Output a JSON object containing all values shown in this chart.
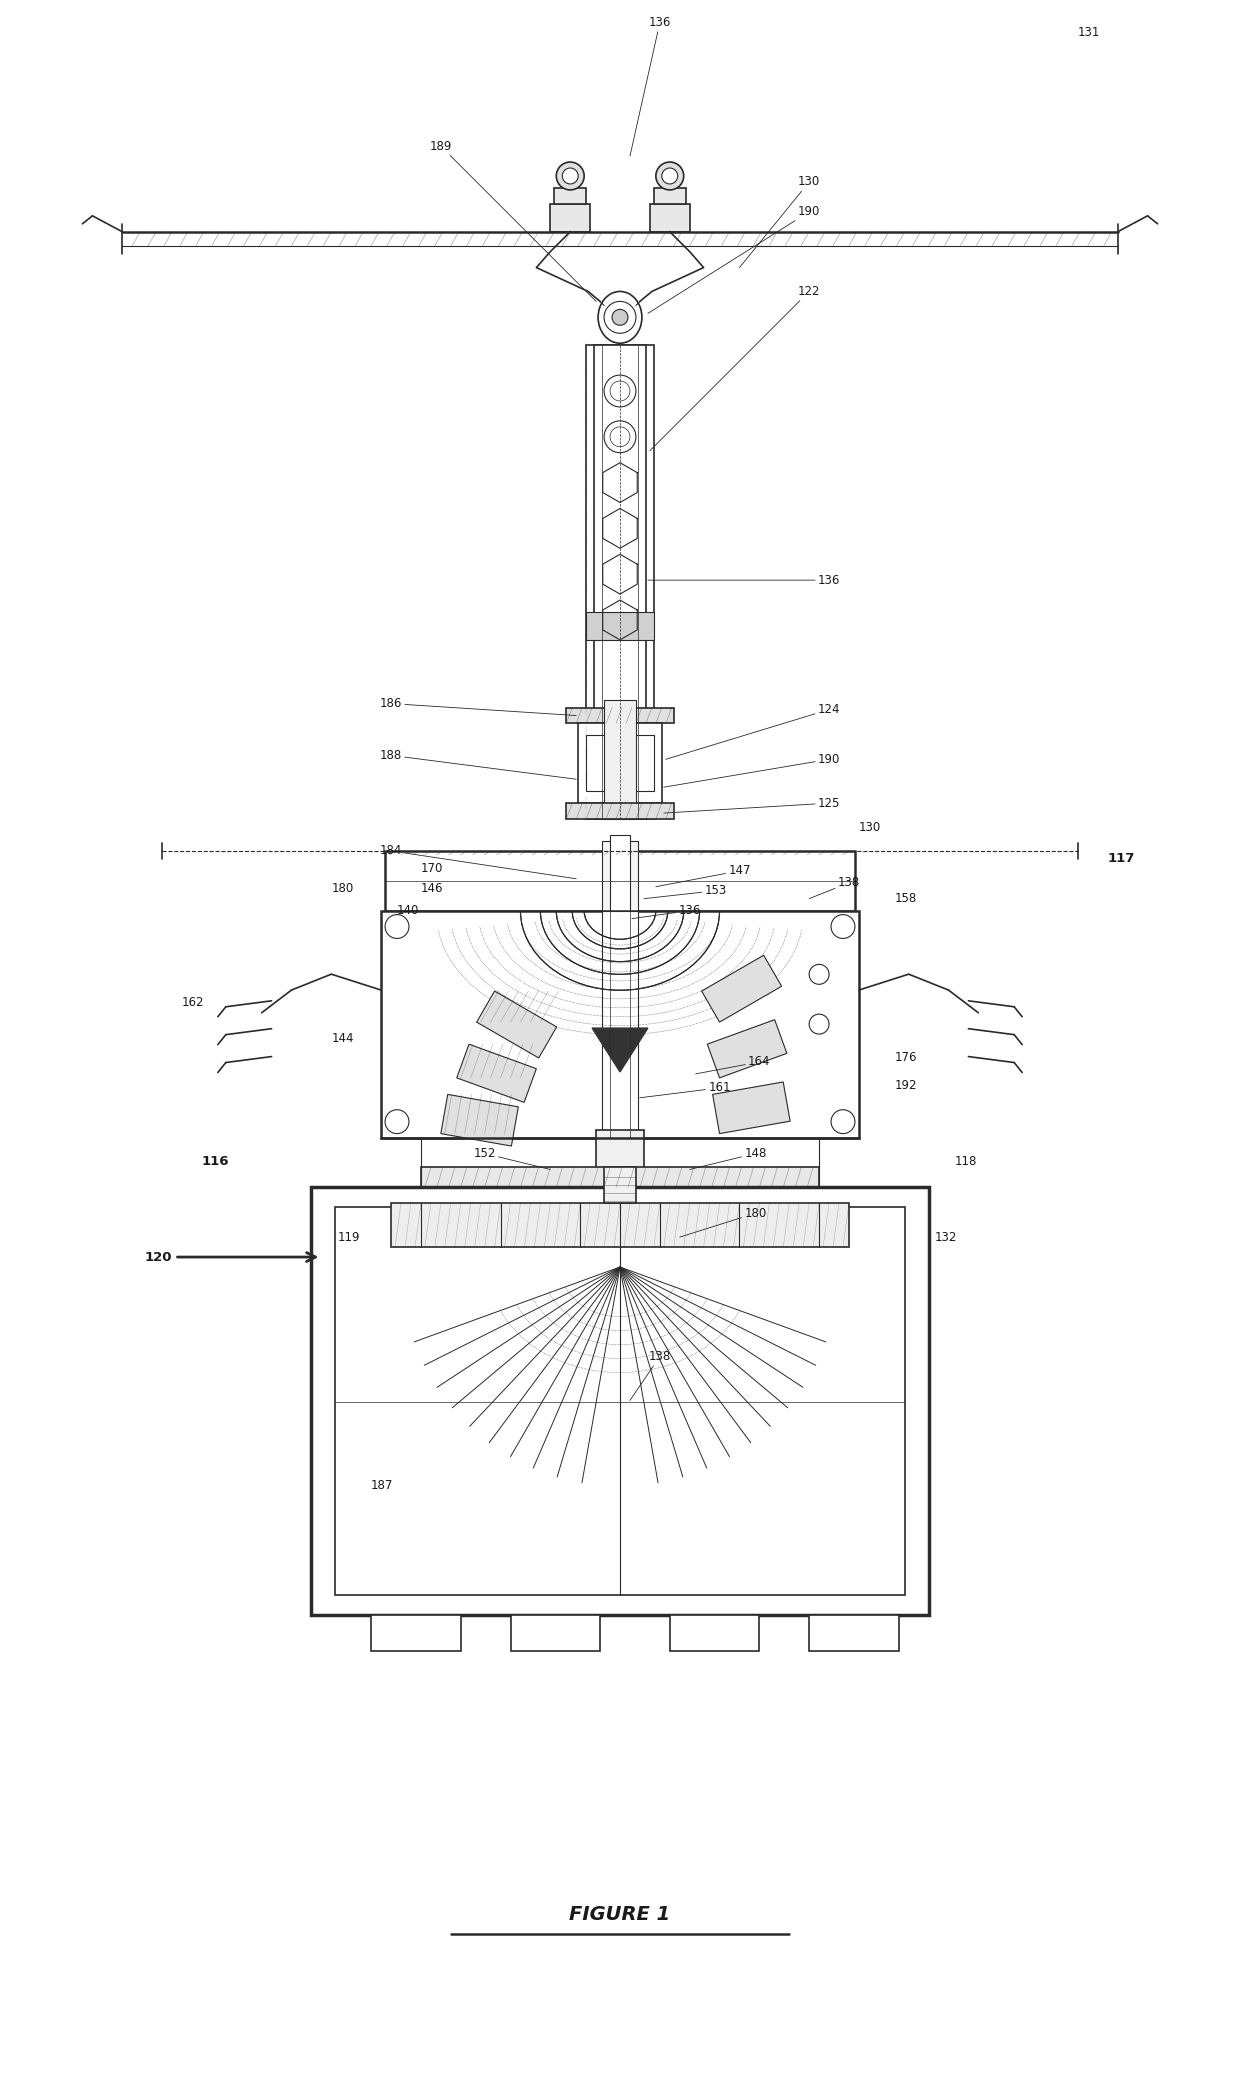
{
  "title": "FIGURE 1",
  "bg_color": "#ffffff",
  "line_color": "#2a2a2a",
  "fig_width": 12.4,
  "fig_height": 20.96,
  "dpi": 100
}
